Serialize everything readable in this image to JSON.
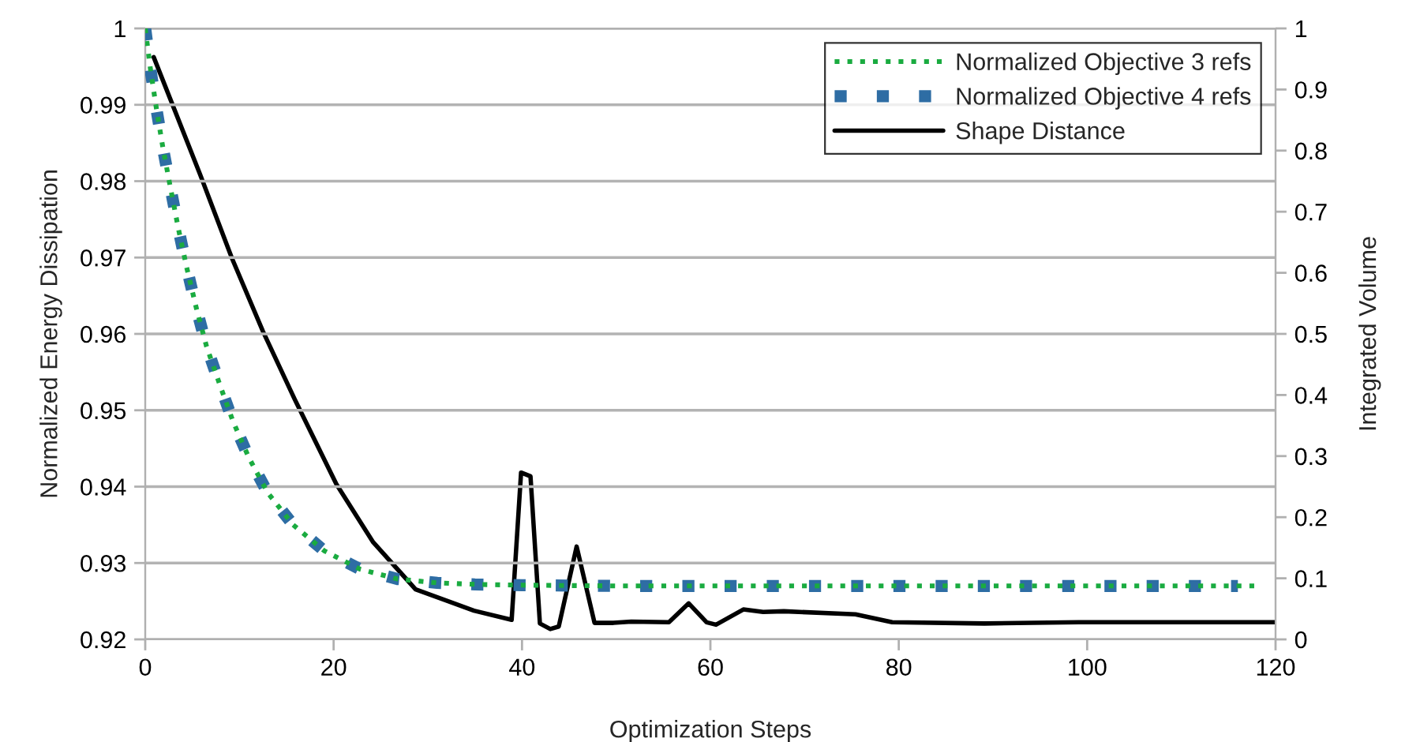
{
  "chart_data": {
    "type": "line",
    "xlabel": "Optimization Steps",
    "ylabel": "Normalized Energy Dissipation",
    "y2label": "Integrated Volume",
    "xlim": [
      0,
      120
    ],
    "xticks": [
      0,
      20,
      40,
      60,
      80,
      100,
      120
    ],
    "ylim": [
      0.92,
      1
    ],
    "yticks": [
      0.92,
      0.93,
      0.94,
      0.95,
      0.96,
      0.97,
      0.98,
      0.99,
      1
    ],
    "y2lim": [
      0,
      1
    ],
    "y2ticks": [
      0,
      0.1,
      0.2,
      0.3,
      0.4,
      0.5,
      0.6,
      0.7,
      0.8,
      0.9,
      1
    ],
    "grid": "y",
    "legend": "top right",
    "series": [
      {
        "name": "Normalized Objective 3 refs",
        "color": "#1aab40",
        "line_style": "dotted",
        "x": [
          0,
          0.55,
          1.2,
          1.9,
          2.7,
          3.5,
          4.4,
          5.4,
          6.5,
          7.9,
          9.3,
          11,
          13,
          15.7,
          19,
          22.8,
          26.8,
          31,
          35,
          40,
          50,
          60,
          80,
          100,
          118
        ],
        "values": [
          1,
          0.9947,
          0.9894,
          0.9842,
          0.979,
          0.9739,
          0.9687,
          0.9635,
          0.9584,
          0.9534,
          0.9486,
          0.9438,
          0.9392,
          0.935,
          0.9316,
          0.9292,
          0.9279,
          0.9274,
          0.9272,
          0.9271,
          0.927,
          0.927,
          0.927,
          0.927,
          0.927
        ]
      },
      {
        "name": "Normalized Objective 4 refs",
        "color": "#2e6da4",
        "line_style": "dotted",
        "x": [
          0,
          0.55,
          1.2,
          1.9,
          2.7,
          3.5,
          4.4,
          5.4,
          6.5,
          7.9,
          9.3,
          11,
          13,
          15.7,
          19,
          22.8,
          26.8,
          31,
          35,
          40,
          50,
          60,
          80,
          100,
          116
        ],
        "values": [
          1,
          0.9947,
          0.9894,
          0.9842,
          0.979,
          0.9739,
          0.9687,
          0.9635,
          0.9584,
          0.9534,
          0.9486,
          0.9438,
          0.9392,
          0.935,
          0.9316,
          0.9292,
          0.9279,
          0.9274,
          0.9272,
          0.9271,
          0.927,
          0.927,
          0.927,
          0.927,
          0.927
        ]
      },
      {
        "name": "Shape Distance",
        "color": "#000000",
        "line_style": "solid",
        "axis": "y2",
        "x": [
          0.9,
          5.8,
          9.2,
          12.5,
          15.9,
          20.3,
          24.2,
          28.7,
          34.9,
          38.9,
          39.9,
          40.9,
          41.9,
          43,
          43.9,
          45.8,
          47.7,
          49.7,
          51.6,
          55.6,
          57.7,
          59.6,
          60.6,
          63.5,
          65.6,
          67.8,
          75.4,
          79.3,
          89.1,
          99.1,
          120
        ],
        "values": [
          0.953,
          0.762,
          0.624,
          0.504,
          0.392,
          0.254,
          0.159,
          0.082,
          0.047,
          0.032,
          0.273,
          0.267,
          0.026,
          0.017,
          0.021,
          0.152,
          0.027,
          0.027,
          0.029,
          0.028,
          0.059,
          0.028,
          0.024,
          0.049,
          0.045,
          0.046,
          0.041,
          0.028,
          0.026,
          0.028,
          0.028
        ]
      }
    ]
  }
}
